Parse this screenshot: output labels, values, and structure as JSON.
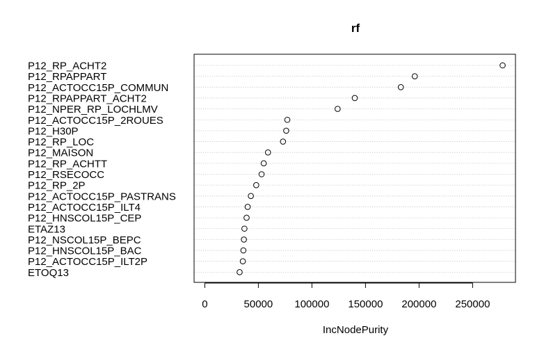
{
  "chart_data": {
    "type": "dotchart",
    "title": "rf",
    "xlabel": "IncNodePurity",
    "ylabel": "",
    "xlim": [
      -10000,
      290000
    ],
    "xticks": [
      0,
      50000,
      100000,
      150000,
      200000,
      250000
    ],
    "grid": "dotted-horizontal",
    "categories": [
      "P12_RP_ACHT2",
      "P12_RPAPPART",
      "P12_ACTOCC15P_COMMUN",
      "P12_RPAPPART_ACHT2",
      "P12_NPER_RP_LOCHLMV",
      "P12_ACTOCC15P_2ROUES",
      "P12_H30P",
      "P12_RP_LOC",
      "P12_MAISON",
      "P12_RP_ACHTT",
      "P12_RSECOCC",
      "P12_RP_2P",
      "P12_ACTOCC15P_PASTRANS",
      "P12_ACTOCC15P_ILT4",
      "P12_HNSCOL15P_CEP",
      "ETAZ13",
      "P12_NSCOL15P_BEPC",
      "P12_HNSCOL15P_BAC",
      "P12_ACTOCC15P_ILT2P",
      "ETOQ13"
    ],
    "values": [
      278000,
      196000,
      183000,
      140000,
      124000,
      77000,
      76000,
      73000,
      59000,
      55000,
      53000,
      48000,
      43000,
      40000,
      39000,
      37000,
      36500,
      36000,
      35500,
      32500
    ]
  }
}
